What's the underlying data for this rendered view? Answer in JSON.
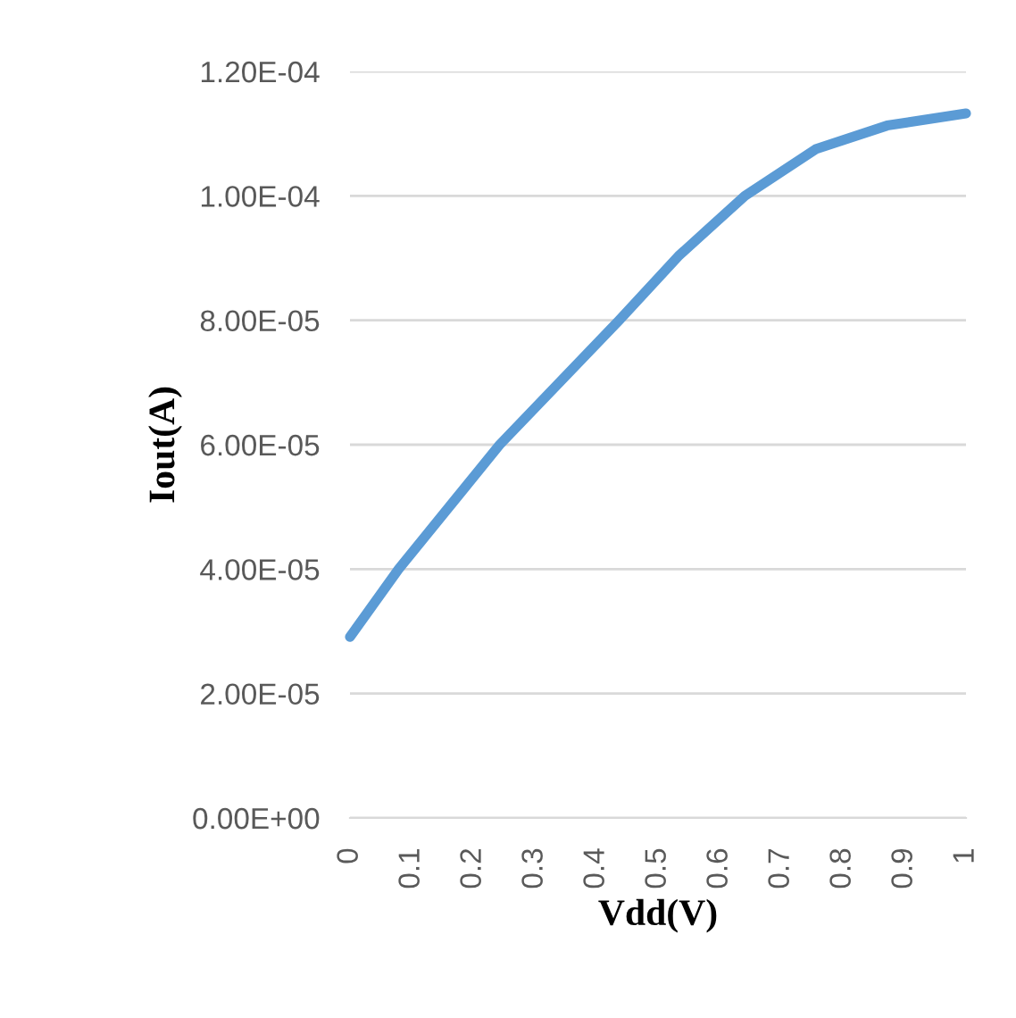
{
  "chart_data": {
    "type": "line",
    "xlabel": "Vdd(V)",
    "ylabel": "Iout(A)",
    "x": [
      0,
      0.079,
      0.243,
      0.437,
      0.533,
      0.641,
      0.756,
      0.872,
      1
    ],
    "series": [
      {
        "color": "#5b9bd5",
        "values": [
          2.91e-05,
          4e-05,
          6e-05,
          8e-05,
          9.03e-05,
          0.0001,
          0.0001075,
          0.0001113,
          0.00011325
        ]
      }
    ],
    "xlim": [
      0,
      1
    ],
    "xticks": [
      0,
      0.1,
      0.2,
      0.3,
      0.4,
      0.5,
      0.6,
      0.7,
      0.8,
      0.9,
      1
    ],
    "ylim": [
      0,
      0.00012
    ],
    "yticks": [
      {
        "value": 0,
        "label": "0.00E+00"
      },
      {
        "value": 2e-05,
        "label": "2.00E-05"
      },
      {
        "value": 4e-05,
        "label": "4.00E-05"
      },
      {
        "value": 6e-05,
        "label": "6.00E-05"
      },
      {
        "value": 8e-05,
        "label": "8.00E-05"
      },
      {
        "value": 0.0001,
        "label": "1.00E-04"
      },
      {
        "value": 0.00012,
        "label": "1.20E-04"
      }
    ],
    "grid": "y",
    "marker": "none",
    "line_style": "solid",
    "legend": false
  }
}
